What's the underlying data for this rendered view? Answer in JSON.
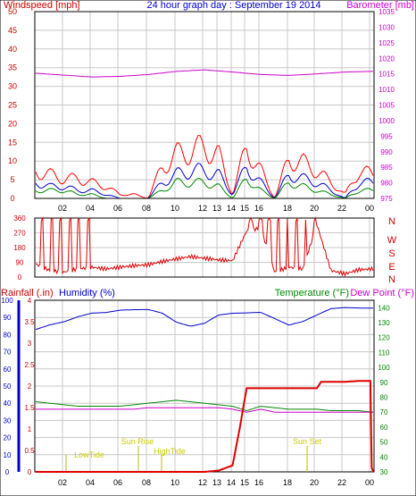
{
  "chart_data": [
    {
      "type": "line",
      "title": "24 hour graph day : September 19 2014",
      "ylabel_left": "Windspeed [mph]",
      "ylabel_right": "Barometer [mb]",
      "ylim_left": [
        0,
        50
      ],
      "ylim_right": [
        975,
        1035
      ],
      "yticks_left": [
        "0",
        "5",
        "10",
        "15",
        "20",
        "25",
        "30",
        "35",
        "40",
        "45",
        "50"
      ],
      "yticks_right": [
        "975",
        "980",
        "985",
        "990",
        "995",
        "1000",
        "1005",
        "1010",
        "1015",
        "1020",
        "1025",
        "1030",
        "1035"
      ],
      "xticks": [
        "02",
        "04",
        "06",
        "08",
        "10",
        "12",
        "13",
        "14",
        "15",
        "16",
        "18",
        "20",
        "22",
        "00"
      ],
      "grid": true,
      "series": [
        {
          "name": "Barometer [mb]",
          "color": "#cc00cc",
          "axis": "right",
          "x": [
            0,
            2,
            4,
            6,
            8,
            10,
            12,
            14,
            16,
            18,
            20,
            22,
            24
          ],
          "values": [
            1015.2,
            1014.6,
            1014.0,
            1014.2,
            1014.8,
            1015.8,
            1016.3,
            1015.6,
            1014.8,
            1014.5,
            1015.0,
            1015.6,
            1015.8
          ]
        },
        {
          "name": "Wind gust",
          "color": "#ff0000",
          "axis": "left",
          "x": [
            0,
            1,
            2,
            3,
            4,
            5,
            6,
            7,
            8,
            9,
            10,
            11,
            12,
            13,
            14,
            15,
            16,
            17,
            18,
            19,
            20,
            21,
            22,
            23,
            24
          ],
          "values": [
            7,
            6,
            5,
            5,
            4,
            3,
            1,
            1,
            0,
            8,
            11,
            12,
            13,
            11,
            1,
            13,
            7,
            0,
            10,
            9,
            7,
            4,
            1,
            7,
            6
          ]
        },
        {
          "name": "Wind average",
          "color": "#0000cc",
          "axis": "left",
          "x": [
            0,
            1,
            2,
            3,
            4,
            5,
            6,
            7,
            8,
            9,
            10,
            11,
            12,
            13,
            14,
            15,
            16,
            17,
            18,
            19,
            20,
            21,
            22,
            23,
            24
          ],
          "values": [
            4,
            3,
            3,
            2,
            2,
            1,
            0,
            0,
            0,
            4,
            6,
            7,
            7,
            6,
            1,
            8,
            4,
            0,
            6,
            5,
            4,
            2,
            0,
            4,
            4
          ]
        },
        {
          "name": "Wind speed",
          "color": "#008800",
          "axis": "left",
          "x": [
            0,
            1,
            2,
            3,
            4,
            5,
            6,
            7,
            8,
            9,
            10,
            11,
            12,
            13,
            14,
            15,
            16,
            17,
            18,
            19,
            20,
            21,
            22,
            23,
            24
          ],
          "values": [
            2,
            2,
            2,
            1,
            1,
            0,
            0,
            0,
            0,
            2,
            4,
            4,
            4,
            3,
            0,
            5,
            2,
            0,
            4,
            3,
            2,
            1,
            0,
            2,
            2
          ]
        }
      ]
    },
    {
      "type": "scatter",
      "title": "",
      "ylabel_right": [
        "N",
        "W",
        "S",
        "E",
        "N"
      ],
      "ylim": [
        0,
        360
      ],
      "yticks": [
        "0",
        "90",
        "180",
        "270",
        "360"
      ],
      "xticks": [
        "02",
        "04",
        "06",
        "08",
        "10",
        "12",
        "13",
        "14",
        "15",
        "16",
        "18",
        "20",
        "22",
        "00"
      ],
      "grid": true,
      "series": [
        {
          "name": "Wind direction",
          "color": "#dd0000",
          "x": [
            0,
            1,
            2,
            3,
            4,
            5,
            6,
            7,
            8,
            9,
            10,
            11,
            12,
            13,
            14,
            15,
            16,
            17,
            18,
            19,
            20,
            21,
            22,
            23,
            24
          ],
          "values": [
            80,
            40,
            30,
            50,
            60,
            50,
            60,
            70,
            75,
            95,
            110,
            125,
            115,
            105,
            100,
            280,
            300,
            30,
            60,
            50,
            320,
            40,
            20,
            45,
            50
          ]
        }
      ]
    },
    {
      "type": "line",
      "title": "",
      "ylabel_left": "Rainfall (.in)",
      "ylabel_left2": "Humidity (%)",
      "ylabel_right": "Temperature (°F)",
      "ylabel_right2": "Dew Point (°F)",
      "ylim_rain": [
        0,
        4
      ],
      "ylim_humidity": [
        0,
        100
      ],
      "ylim_temp": [
        30,
        145
      ],
      "yticks_rain": [
        "0",
        "0.5",
        "1",
        "1.5",
        "2",
        "2.5",
        "3",
        "3.5",
        "4"
      ],
      "yticks_humidity": [
        "0",
        "10",
        "20",
        "30",
        "40",
        "50",
        "60",
        "70",
        "80",
        "90",
        "100"
      ],
      "yticks_temp": [
        "30",
        "40",
        "50",
        "60",
        "70",
        "80",
        "90",
        "100",
        "110",
        "120",
        "130",
        "140"
      ],
      "xticks": [
        "02",
        "04",
        "06",
        "08",
        "10",
        "12",
        "13",
        "14",
        "15",
        "16",
        "18",
        "20",
        "22",
        "00"
      ],
      "annotations": [
        "LowTide",
        "Sun Rise",
        "HighTide",
        "Sun Set"
      ],
      "grid": true,
      "series": [
        {
          "name": "Humidity (%)",
          "color": "#0000cc",
          "axis": "humidity",
          "x": [
            0,
            1,
            2,
            3,
            4,
            5,
            6,
            7,
            8,
            9,
            10,
            11,
            12,
            13,
            14,
            15,
            16,
            17,
            18,
            19,
            20,
            21,
            22,
            23,
            24
          ],
          "values": [
            83,
            86,
            88,
            91,
            93,
            93,
            94,
            94,
            94,
            92,
            87,
            85,
            87,
            92,
            93,
            93,
            93,
            89,
            85,
            87,
            91,
            95,
            96,
            96,
            96
          ]
        },
        {
          "name": "Temperature (°F)",
          "color": "#008800",
          "axis": "temp",
          "x": [
            0,
            1,
            2,
            3,
            4,
            5,
            6,
            7,
            8,
            9,
            10,
            11,
            12,
            13,
            14,
            15,
            16,
            17,
            18,
            19,
            20,
            21,
            22,
            23,
            24
          ],
          "values": [
            77,
            76,
            75,
            74,
            74,
            74,
            74,
            75,
            76,
            77,
            78,
            77,
            76,
            75,
            74,
            71,
            74,
            73,
            72,
            72,
            72,
            71,
            71,
            71,
            70
          ]
        },
        {
          "name": "Dew Point (°F)",
          "color": "#cc00cc",
          "axis": "temp",
          "x": [
            0,
            1,
            2,
            3,
            4,
            5,
            6,
            7,
            8,
            9,
            10,
            11,
            12,
            13,
            14,
            15,
            16,
            17,
            18,
            19,
            20,
            21,
            22,
            23,
            24
          ],
          "values": [
            72,
            72,
            72,
            72,
            72,
            72,
            72,
            72,
            73,
            73,
            73,
            73,
            73,
            73,
            72,
            70,
            72,
            70,
            70,
            70,
            70,
            70,
            70,
            70,
            70
          ]
        },
        {
          "name": "Rainfall (.in)",
          "color": "#dd0000",
          "axis": "rain",
          "x": [
            0,
            2,
            4,
            6,
            8,
            10,
            11,
            12,
            13,
            14,
            14.5,
            15,
            16,
            17,
            18,
            19,
            20,
            20.3,
            21,
            22,
            23,
            23.8,
            23.9,
            24
          ],
          "values": [
            0,
            0,
            0,
            0,
            0,
            0,
            0,
            0,
            0.03,
            0.15,
            1.0,
            1.95,
            1.95,
            1.95,
            1.95,
            1.95,
            1.95,
            2.1,
            2.1,
            2.1,
            2.12,
            2.12,
            0.1,
            0.0
          ]
        }
      ]
    }
  ]
}
